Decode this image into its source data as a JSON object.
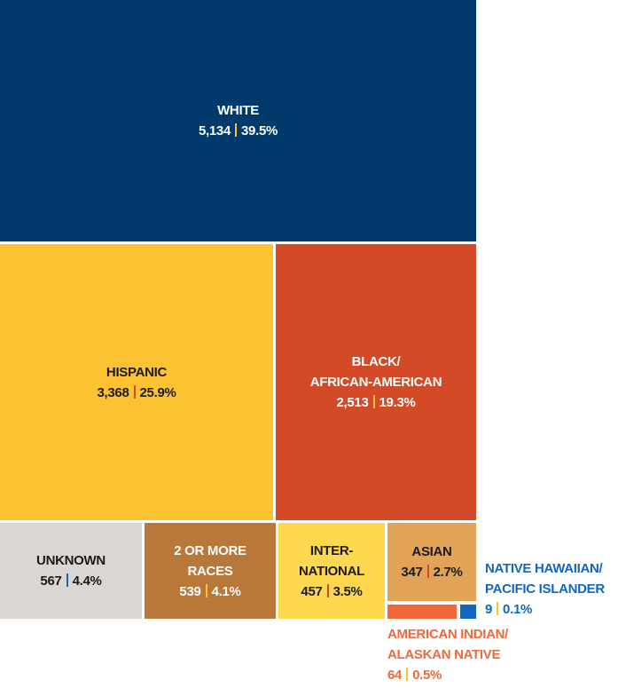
{
  "chart_data": {
    "type": "treemap",
    "categories": [
      "WHITE",
      "HISPANIC",
      "BLACK/\nAFRICAN-AMERICAN",
      "UNKNOWN",
      "2 OR MORE\nRACES",
      "INTER-\nNATIONAL",
      "ASIAN",
      "AMERICAN INDIAN/\nALASKAN NATIVE",
      "NATIVE HAWAIIAN/\nPACIFIC ISLANDER"
    ],
    "values": [
      5134,
      3368,
      2513,
      567,
      539,
      457,
      347,
      64,
      9
    ],
    "value_labels": [
      "5,134",
      "3,368",
      "2,513",
      "567",
      "539",
      "457",
      "347",
      "64",
      "9"
    ],
    "percents": [
      39.5,
      25.9,
      19.3,
      4.4,
      4.1,
      3.5,
      2.7,
      0.5,
      0.1
    ],
    "percent_labels": [
      "39.5%",
      "25.9%",
      "19.3%",
      "4.4%",
      "4.1%",
      "3.5%",
      "2.7%",
      "0.5%",
      "0.1%"
    ],
    "colors": [
      "#003a6c",
      "#fdc232",
      "#d44a26",
      "#dad6d3",
      "#b8783a",
      "#fed94f",
      "#e1a457",
      "#f0683a",
      "#1266c0"
    ]
  }
}
